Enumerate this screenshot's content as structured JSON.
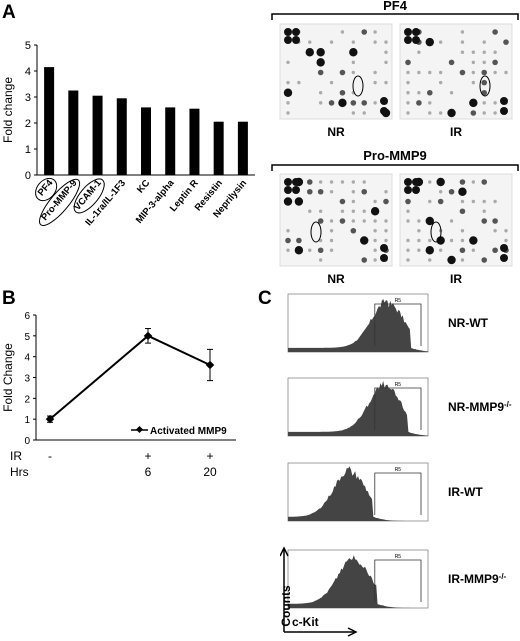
{
  "panels": {
    "a": "A",
    "b": "B",
    "c": "C"
  },
  "panel_a": {
    "chart_data": {
      "type": "bar",
      "categories": [
        "PF4",
        "Pro-MMP-9",
        "VCAM-1",
        "IL-1ra/IL-1F3",
        "KC",
        "MIP-3-alpha",
        "Leptin R",
        "Resistin",
        "Neprilysin"
      ],
      "values": [
        4.15,
        3.25,
        3.05,
        2.95,
        2.6,
        2.6,
        2.55,
        2.05,
        2.05
      ],
      "ylabel": "Fold change",
      "ylim": [
        0,
        5
      ],
      "yticks": [
        0,
        1,
        2,
        3,
        4,
        5
      ],
      "circled": [
        "PF4",
        "Pro-MMP-9",
        "VCAM-1"
      ]
    },
    "blots": {
      "pf4_title": "PF4",
      "pro_mmp9_title": "Pro-MMP9",
      "nr": "NR",
      "ir": "IR"
    }
  },
  "panel_b": {
    "chart_data": {
      "type": "line",
      "categories": [
        "-",
        "6",
        "20"
      ],
      "series": [
        {
          "name": "Activated MMP9",
          "values": [
            1.0,
            5.0,
            3.6
          ],
          "errors": [
            0.15,
            0.35,
            0.75
          ]
        }
      ],
      "ylabel": "Fold  Change",
      "ylim": [
        0,
        6
      ],
      "yticks": [
        0,
        1,
        2,
        3,
        4,
        5,
        6
      ],
      "row_ir_label": "IR",
      "row_ir": [
        "-",
        "+",
        "+"
      ],
      "row_hrs_label": "Hrs",
      "row_hrs": [
        "",
        "6",
        "20"
      ]
    }
  },
  "panel_c": {
    "histograms": [
      {
        "label": "NR-WT",
        "peak": 0.72
      },
      {
        "label": "NR-MMP9",
        "peak": 0.7
      },
      {
        "label": "IR-WT",
        "peak": 0.45
      },
      {
        "label": "IR-MMP9",
        "peak": 0.48
      }
    ],
    "gate": "R5",
    "superscript": "-/-",
    "axis_y": "Counts",
    "axis_x": "c-Kit"
  }
}
